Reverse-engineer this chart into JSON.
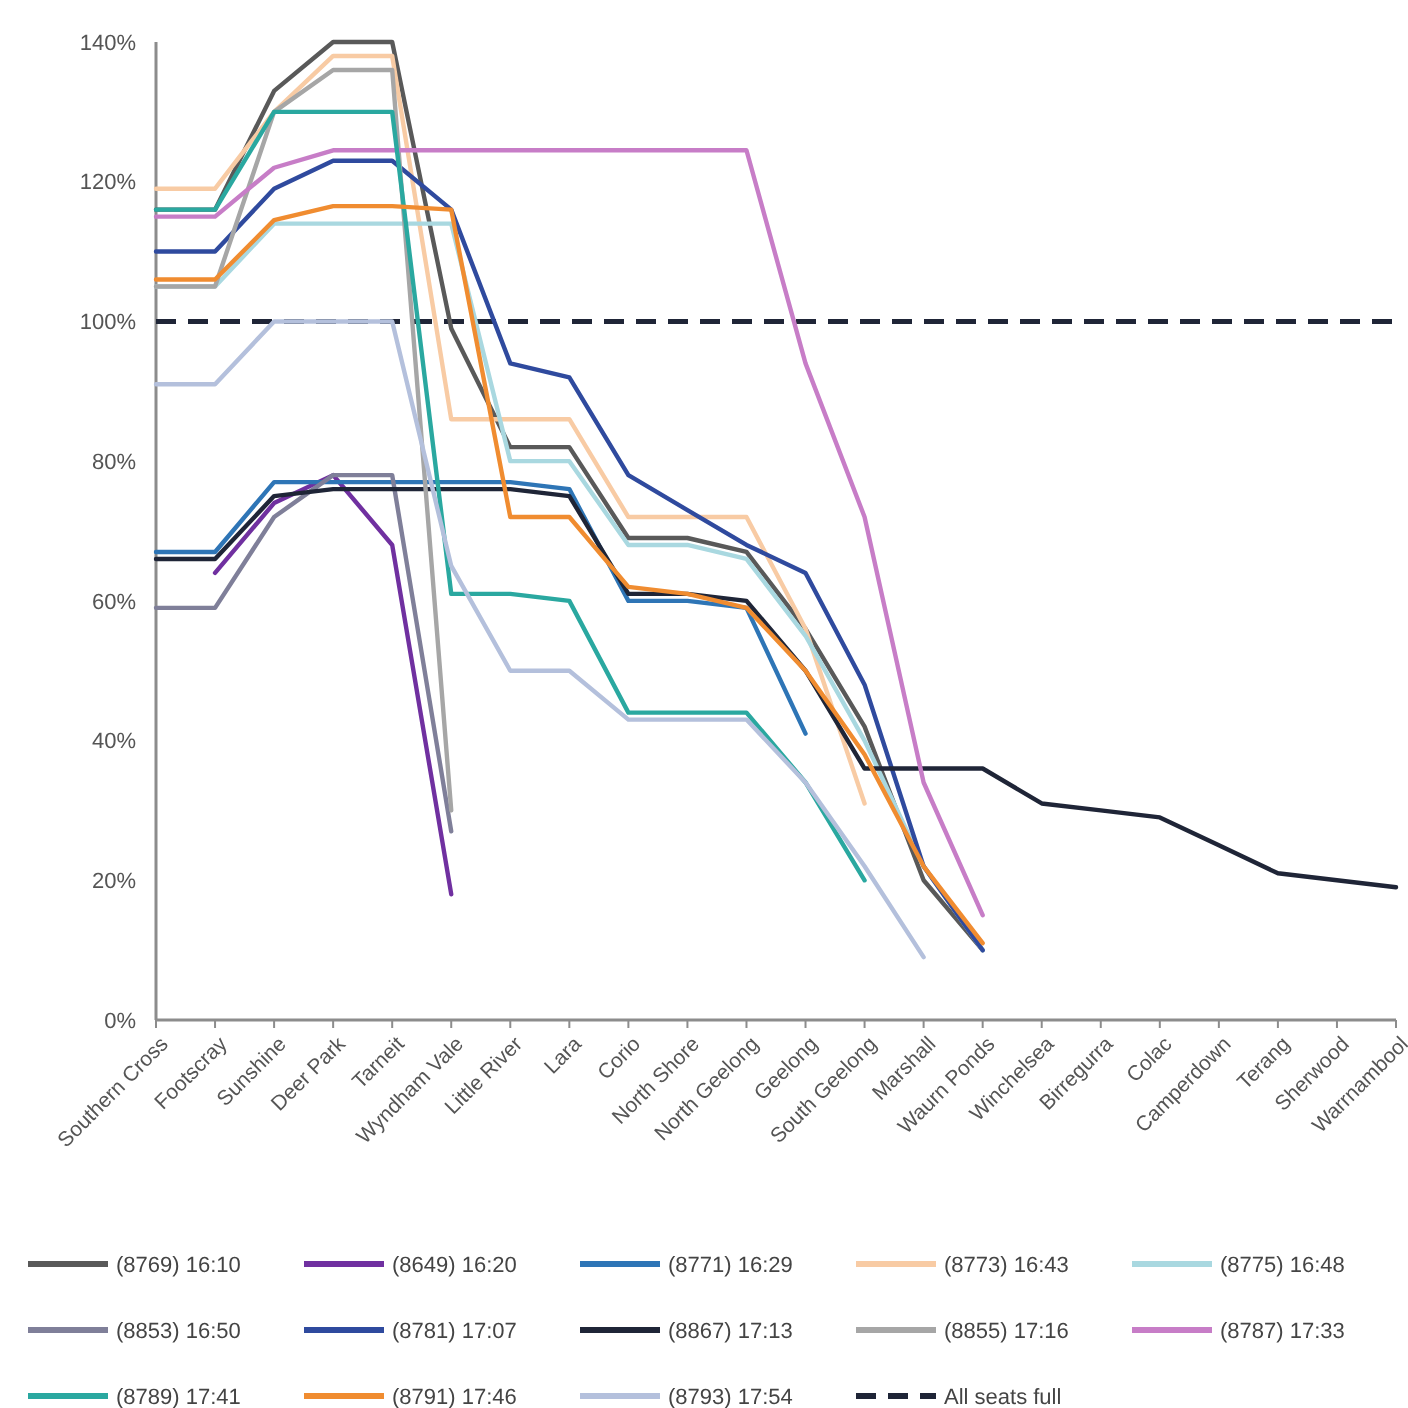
{
  "chart_data": {
    "type": "line",
    "categories": [
      "Southern Cross",
      "Footscray",
      "Sunshine",
      "Deer Park",
      "Tarneit",
      "Wyndham Vale",
      "Little River",
      "Lara",
      "Corio",
      "North Shore",
      "North Geelong",
      "Geelong",
      "South Geelong",
      "Marshall",
      "Waurn Ponds",
      "Winchelsea",
      "Birregurra",
      "Colac",
      "Camperdown",
      "Terang",
      "Sherwood",
      "Warrnambool"
    ],
    "series": [
      {
        "name": "(8769) 16:10",
        "color": "#595959",
        "values": [
          116,
          116,
          133,
          140,
          140,
          99,
          82,
          82,
          69,
          69,
          67,
          56,
          42,
          20,
          10,
          null,
          null,
          null,
          null,
          null,
          null,
          null
        ]
      },
      {
        "name": "(8649) 16:20",
        "color": "#7030a0",
        "values": [
          null,
          64,
          74,
          78,
          68,
          18,
          null,
          null,
          null,
          null,
          null,
          null,
          null,
          null,
          null,
          null,
          null,
          null,
          null,
          null,
          null,
          null
        ]
      },
      {
        "name": "(8771) 16:29",
        "color": "#2e75b6",
        "values": [
          67,
          67,
          77,
          77,
          77,
          77,
          77,
          76,
          60,
          60,
          59,
          41,
          null,
          null,
          null,
          null,
          null,
          null,
          null,
          null,
          null,
          null
        ]
      },
      {
        "name": "(8773) 16:43",
        "color": "#f8cba4",
        "values": [
          119,
          119,
          130,
          138,
          138,
          86,
          86,
          86,
          72,
          72,
          72,
          56,
          31,
          null,
          null,
          null,
          null,
          null,
          null,
          null,
          null,
          null
        ]
      },
      {
        "name": "(8775) 16:48",
        "color": "#a9d8e0",
        "values": [
          105,
          105,
          114,
          114,
          114,
          114,
          80,
          80,
          68,
          68,
          66,
          55,
          40,
          22,
          10,
          null,
          null,
          null,
          null,
          null,
          null,
          null
        ]
      },
      {
        "name": "(8853) 16:50",
        "color": "#7f7f99",
        "values": [
          59,
          59,
          72,
          78,
          78,
          27,
          null,
          null,
          null,
          null,
          null,
          null,
          null,
          null,
          null,
          null,
          null,
          null,
          null,
          null,
          null,
          null
        ]
      },
      {
        "name": "(8781) 17:07",
        "color": "#2f4a9e",
        "values": [
          110,
          110,
          119,
          123,
          123,
          116,
          94,
          92,
          78,
          73,
          68,
          64,
          48,
          22,
          10,
          null,
          null,
          null,
          null,
          null,
          null,
          null
        ]
      },
      {
        "name": "(8867) 17:13",
        "color": "#1f2537",
        "values": [
          66,
          66,
          75,
          76,
          76,
          76,
          76,
          75,
          61,
          61,
          60,
          50,
          36,
          36,
          36,
          31,
          30,
          29,
          25,
          21,
          20,
          19
        ]
      },
      {
        "name": "(8855) 17:16",
        "color": "#a6a6a6",
        "values": [
          105,
          105,
          130,
          136,
          136,
          30,
          null,
          null,
          null,
          null,
          null,
          null,
          null,
          null,
          null,
          null,
          null,
          null,
          null,
          null,
          null,
          null
        ]
      },
      {
        "name": "(8787) 17:33",
        "color": "#c77dc7",
        "values": [
          115,
          115,
          122,
          124.5,
          124.5,
          124.5,
          124.5,
          124.5,
          124.5,
          124.5,
          124.5,
          94,
          72,
          34,
          15,
          null,
          null,
          null,
          null,
          null,
          null,
          null
        ]
      },
      {
        "name": "(8789) 17:41",
        "color": "#2aa8a0",
        "values": [
          116,
          116,
          130,
          130,
          130,
          61,
          61,
          60,
          44,
          44,
          44,
          34,
          20,
          null,
          null,
          null,
          null,
          null,
          null,
          null,
          null,
          null
        ]
      },
      {
        "name": "(8791) 17:46",
        "color": "#f08c30",
        "values": [
          106,
          106,
          114.5,
          116.5,
          116.5,
          116,
          72,
          72,
          62,
          61,
          59,
          50,
          38,
          22,
          11,
          null,
          null,
          null,
          null,
          null,
          null,
          null
        ]
      },
      {
        "name": "(8793) 17:54",
        "color": "#b4c0dc",
        "values": [
          91,
          91,
          100,
          100,
          100,
          65,
          50,
          50,
          43,
          43,
          43,
          34,
          22,
          9,
          null,
          null,
          null,
          null,
          null,
          null,
          null,
          null
        ]
      }
    ],
    "ylim": [
      0,
      140
    ],
    "yticks": [
      {
        "value": 0,
        "label": "0%"
      },
      {
        "value": 20,
        "label": "20%"
      },
      {
        "value": 40,
        "label": "40%"
      },
      {
        "value": 60,
        "label": "60%"
      },
      {
        "value": 80,
        "label": "80%"
      },
      {
        "value": 100,
        "label": "100%"
      },
      {
        "value": 120,
        "label": "120%"
      },
      {
        "value": 140,
        "label": "140%"
      }
    ],
    "ref_lines": [
      {
        "axis": "y",
        "value": 100,
        "label": "All seats full",
        "color": "#1f2537",
        "line_style": "dashed"
      }
    ],
    "grid": false,
    "legend": "bottom",
    "marker": "none",
    "line_style": "solid"
  }
}
